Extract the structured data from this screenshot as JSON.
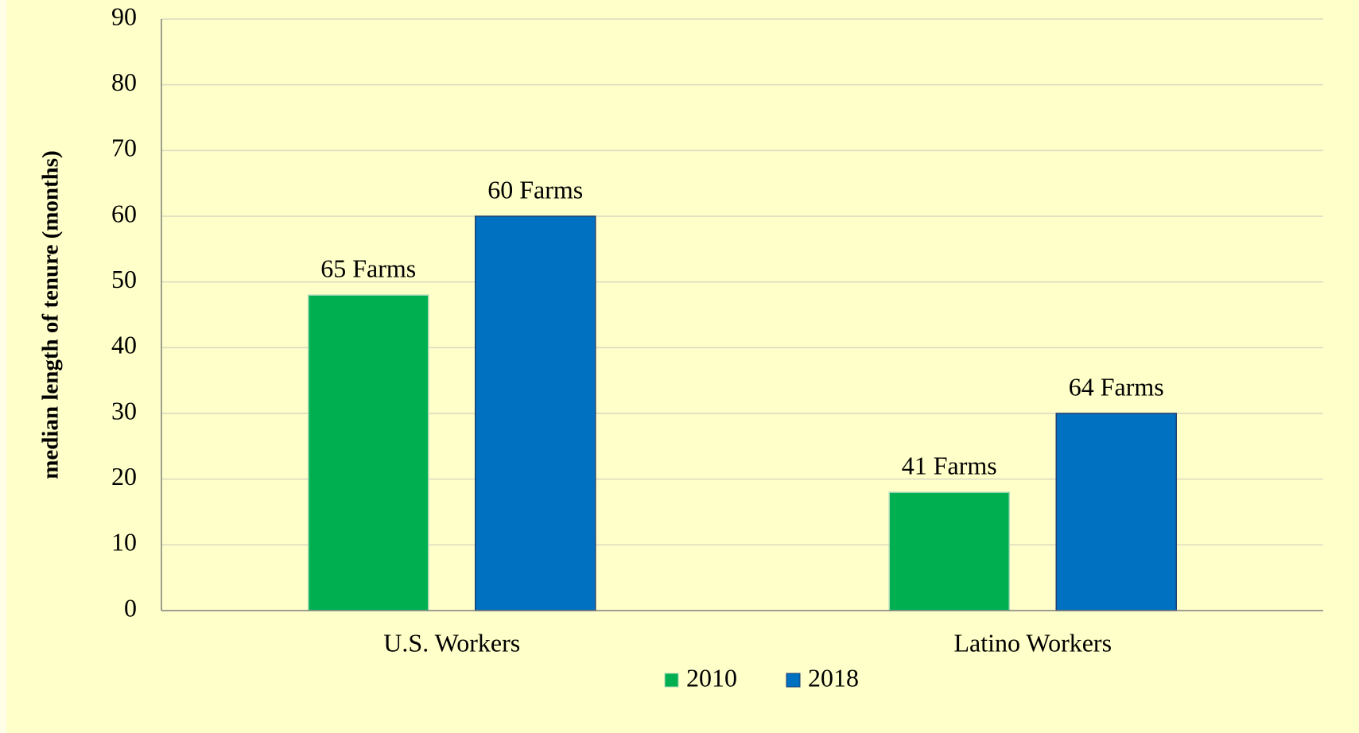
{
  "chart_data": {
    "type": "bar",
    "y_label": "median length of tenure (months)",
    "categories": [
      "U.S. Workers",
      "Latino Workers"
    ],
    "series": [
      {
        "name": "2010",
        "color": "#00b050",
        "values": [
          48,
          18
        ],
        "labels": [
          "65 Farms",
          "41 Farms"
        ]
      },
      {
        "name": "2018",
        "color": "#0070c0",
        "values": [
          60,
          30
        ],
        "labels": [
          "60 Farms",
          "64 Farms"
        ]
      }
    ],
    "ylim": [
      0,
      90
    ],
    "yticks": [
      0,
      10,
      20,
      30,
      40,
      50,
      60,
      70,
      80,
      90
    ],
    "grid": true,
    "legend": "bottom"
  }
}
